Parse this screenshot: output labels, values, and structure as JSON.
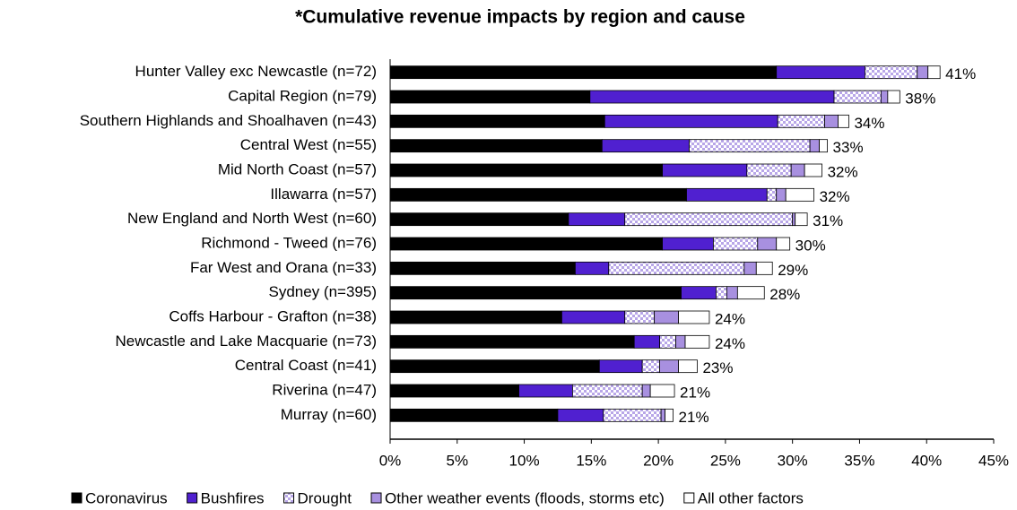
{
  "chart_data": {
    "type": "stacked-barh",
    "title": "*Cumulative revenue impacts by region and cause",
    "categories": [
      "Hunter Valley exc Newcastle (n=72)",
      "Capital Region (n=79)",
      "Southern Highlands and Shoalhaven (n=43)",
      "Central West (n=55)",
      "Mid North Coast (n=57)",
      "Illawarra (n=57)",
      "New England and North West (n=60)",
      "Richmond - Tweed (n=76)",
      "Far West and Orana (n=33)",
      "Sydney (n=395)",
      "Coffs Harbour - Grafton (n=38)",
      "Newcastle and Lake Macquarie (n=73)",
      "Central Coast (n=41)",
      "Riverina (n=47)",
      "Murray (n=60)"
    ],
    "series": [
      {
        "name": "Coronavirus",
        "color": "#000000",
        "values": [
          28.8,
          14.9,
          16.0,
          15.8,
          20.3,
          22.1,
          13.3,
          20.3,
          13.8,
          21.7,
          12.8,
          18.2,
          15.6,
          9.6,
          12.5
        ]
      },
      {
        "name": "Bushfires",
        "color": "#5020d0",
        "values": [
          6.6,
          18.2,
          12.9,
          6.5,
          6.3,
          6.0,
          4.2,
          3.8,
          2.5,
          2.6,
          4.7,
          1.9,
          3.2,
          4.0,
          3.4
        ]
      },
      {
        "name": "Drought",
        "color": "#b8a6e8",
        "pattern": "checkered",
        "values": [
          3.9,
          3.5,
          3.5,
          9.0,
          3.3,
          0.7,
          12.5,
          3.3,
          10.1,
          0.8,
          2.2,
          1.2,
          1.3,
          5.2,
          4.3
        ]
      },
      {
        "name": "Other weather events (floods, storms etc)",
        "color": "#a890e0",
        "values": [
          0.8,
          0.5,
          1.0,
          0.7,
          1.0,
          0.7,
          0.2,
          1.4,
          0.9,
          0.8,
          1.8,
          0.7,
          1.4,
          0.6,
          0.3
        ]
      },
      {
        "name": "All other factors",
        "color": "#ffffff",
        "values": [
          0.9,
          0.9,
          0.8,
          0.6,
          1.3,
          2.1,
          0.9,
          1.0,
          1.2,
          2.0,
          2.3,
          1.8,
          1.4,
          1.8,
          0.6
        ]
      }
    ],
    "total_labels": [
      "41%",
      "38%",
      "34%",
      "33%",
      "32%",
      "32%",
      "31%",
      "30%",
      "29%",
      "28%",
      "24%",
      "24%",
      "23%",
      "21%",
      "21%"
    ],
    "xlim": [
      0,
      45
    ],
    "xticks": [
      {
        "value": 0,
        "label": "0%"
      },
      {
        "value": 5,
        "label": "5%"
      },
      {
        "value": 10,
        "label": "10%"
      },
      {
        "value": 15,
        "label": "15%"
      },
      {
        "value": 20,
        "label": "20%"
      },
      {
        "value": 25,
        "label": "25%"
      },
      {
        "value": 30,
        "label": "30%"
      },
      {
        "value": 35,
        "label": "35%"
      },
      {
        "value": 40,
        "label": "40%"
      },
      {
        "value": 45,
        "label": "45%"
      }
    ],
    "legend": "bottom"
  }
}
